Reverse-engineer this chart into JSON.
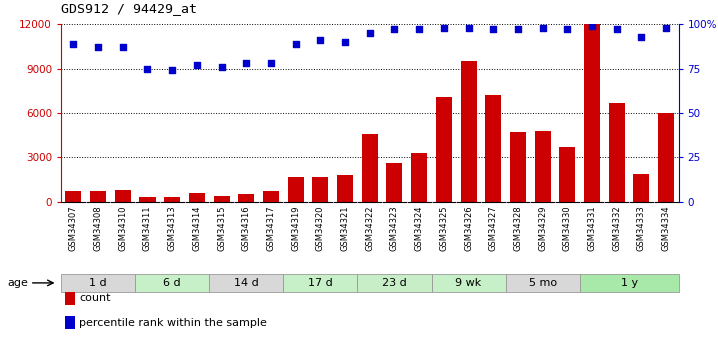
{
  "title": "GDS912 / 94429_at",
  "samples": [
    "GSM34307",
    "GSM34308",
    "GSM34310",
    "GSM34311",
    "GSM34313",
    "GSM34314",
    "GSM34315",
    "GSM34316",
    "GSM34317",
    "GSM34319",
    "GSM34320",
    "GSM34321",
    "GSM34322",
    "GSM34323",
    "GSM34324",
    "GSM34325",
    "GSM34326",
    "GSM34327",
    "GSM34328",
    "GSM34329",
    "GSM34330",
    "GSM34331",
    "GSM34332",
    "GSM34333",
    "GSM34334"
  ],
  "count_values": [
    700,
    700,
    800,
    300,
    300,
    600,
    400,
    500,
    700,
    1700,
    1700,
    1800,
    4600,
    2600,
    3300,
    7100,
    9500,
    7200,
    4700,
    4800,
    3700,
    12000,
    6700,
    1900,
    6000
  ],
  "percentile_right": [
    89,
    87,
    87,
    75,
    74,
    77,
    76,
    78,
    78,
    89,
    91,
    90,
    95,
    97,
    97,
    98,
    98,
    97,
    97,
    98,
    97,
    99,
    97,
    93,
    98
  ],
  "age_groups": [
    {
      "label": "1 d",
      "start": 0,
      "end": 3,
      "color": "#d8d8d8"
    },
    {
      "label": "6 d",
      "start": 3,
      "end": 6,
      "color": "#c8f0c8"
    },
    {
      "label": "14 d",
      "start": 6,
      "end": 9,
      "color": "#d8d8d8"
    },
    {
      "label": "17 d",
      "start": 9,
      "end": 12,
      "color": "#c8f0c8"
    },
    {
      "label": "23 d",
      "start": 12,
      "end": 15,
      "color": "#c8eec8"
    },
    {
      "label": "9 wk",
      "start": 15,
      "end": 18,
      "color": "#c8f0c8"
    },
    {
      "label": "5 mo",
      "start": 18,
      "end": 21,
      "color": "#d8d8d8"
    },
    {
      "label": "1 y",
      "start": 21,
      "end": 25,
      "color": "#a8e8a8"
    }
  ],
  "ylim_left": [
    0,
    12000
  ],
  "ylim_right": [
    0,
    100
  ],
  "yticks_left": [
    0,
    3000,
    6000,
    9000,
    12000
  ],
  "yticks_right": [
    0,
    25,
    50,
    75,
    100
  ],
  "bar_color": "#cc0000",
  "dot_color": "#0000cc",
  "legend_count": "count",
  "legend_pct": "percentile rank within the sample",
  "age_label": "age"
}
